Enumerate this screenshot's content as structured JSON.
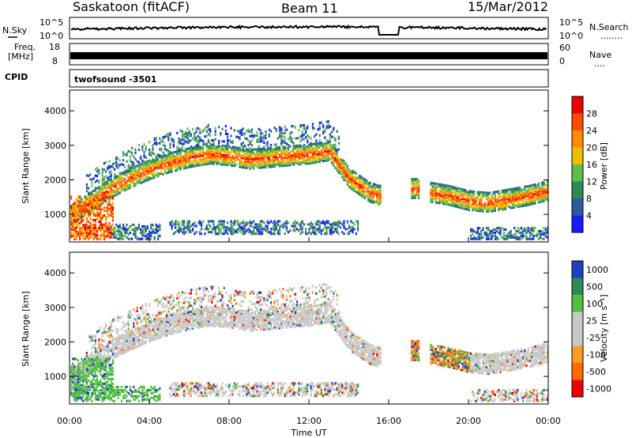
{
  "header": {
    "station": "Saskatoon (fitACF)",
    "beam": "Beam 11",
    "date": "15/Mar/2012"
  },
  "ancillary": {
    "nsky_label": "N.Sky",
    "nsearch_label": "N.Search",
    "nsearch_dots": "........",
    "noise_ticks": [
      "10^5",
      "10^0"
    ],
    "freq_label": "Freq.",
    "freq_unit": "[MHz]",
    "freq_ticks": [
      "18",
      "8"
    ],
    "nave_label": "Nave",
    "nave_dots": "....",
    "nave_ticks": [
      "60",
      "0"
    ],
    "cpid_label": "CPID",
    "cpid_value": "twofsound  -3501"
  },
  "colors": {
    "power": [
      "#1a1aff",
      "#2a5aa0",
      "#2e8b57",
      "#5fbf4a",
      "#f0c000",
      "#ff8c00",
      "#ff4a00",
      "#ee0000"
    ],
    "velocity": [
      "#2040c0",
      "#2e8b57",
      "#50c040",
      "#c8c8c8",
      "#c8c8c8",
      "#ff9d20",
      "#ff6a00",
      "#ee0000"
    ],
    "ground_scatter": "#c8c8c8"
  },
  "chart_data": [
    {
      "type": "heatmap",
      "name": "power",
      "ylabel": "Slant Range [km]",
      "yticks": [
        "1000",
        "2000",
        "3000",
        "4000"
      ],
      "ylim": [
        200,
        4600
      ],
      "colorbar_label": "Power [dB]",
      "colorbar_ticks": [
        "4",
        "8",
        "12",
        "16",
        "20",
        "24",
        "28"
      ],
      "x_hours": [
        0,
        0.5,
        1,
        2,
        3,
        4,
        5,
        6,
        7,
        8,
        9,
        10,
        11,
        12,
        13,
        14,
        15,
        15.5,
        17,
        17.5,
        18,
        19,
        20,
        21,
        22,
        23,
        24
      ],
      "echo_band_center_km": [
        900,
        1100,
        1300,
        1700,
        2000,
        2250,
        2450,
        2600,
        2700,
        2650,
        2550,
        2600,
        2650,
        2700,
        2800,
        2000,
        1600,
        1500,
        1700,
        1700,
        1600,
        1500,
        1350,
        1300,
        1400,
        1500,
        1650
      ]
    },
    {
      "type": "heatmap",
      "name": "velocity",
      "ylabel": "Slant Range [km]",
      "yticks": [
        "1000",
        "2000",
        "3000",
        "4000"
      ],
      "ylim": [
        200,
        4600
      ],
      "colorbar_label": "Velocity [m s⁻¹]",
      "colorbar_ticks": [
        "1000",
        "500",
        "100",
        "25",
        "-25",
        "-100",
        "-500",
        "-1000"
      ],
      "xlabel": "Time UT",
      "xticks": [
        "00:00",
        "04:00",
        "08:00",
        "12:00",
        "16:00",
        "20:00",
        "00:00"
      ]
    }
  ]
}
